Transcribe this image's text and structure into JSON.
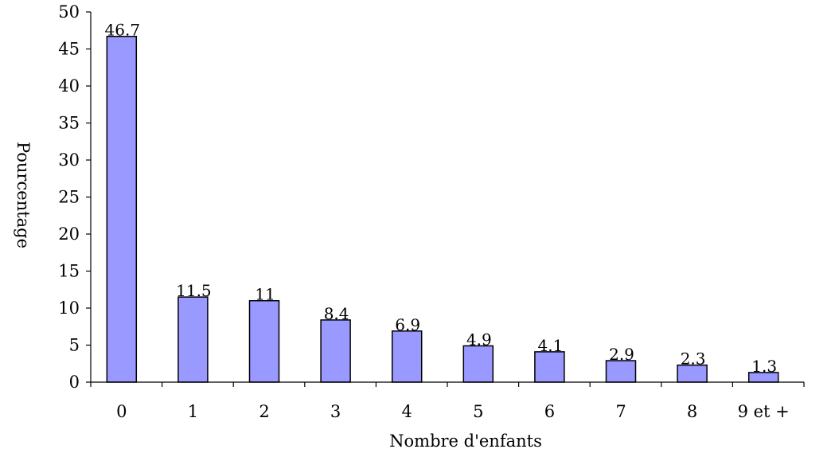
{
  "chart_data": {
    "type": "bar",
    "title": "",
    "xlabel": "Nombre d'enfants",
    "ylabel": "Pourcentage",
    "categories": [
      "0",
      "1",
      "2",
      "3",
      "4",
      "5",
      "6",
      "7",
      "8",
      "9 et +"
    ],
    "values": [
      46.7,
      11.5,
      11,
      8.4,
      6.9,
      4.9,
      4.1,
      2.9,
      2.3,
      1.3
    ],
    "data_labels": [
      "46.7",
      "11.5",
      "11",
      "8.4",
      "6.9",
      "4.9",
      "4.1",
      "2.9",
      "2.3",
      "1.3"
    ],
    "ylim": [
      0,
      50
    ],
    "yticks": [
      "0",
      "5",
      "10",
      "15",
      "20",
      "25",
      "30",
      "35",
      "40",
      "45",
      "50"
    ],
    "grid": false,
    "legend": "none",
    "colors": {
      "bar_fill": "#9999ff",
      "bar_stroke": "#000000",
      "axis": "#000000"
    }
  }
}
